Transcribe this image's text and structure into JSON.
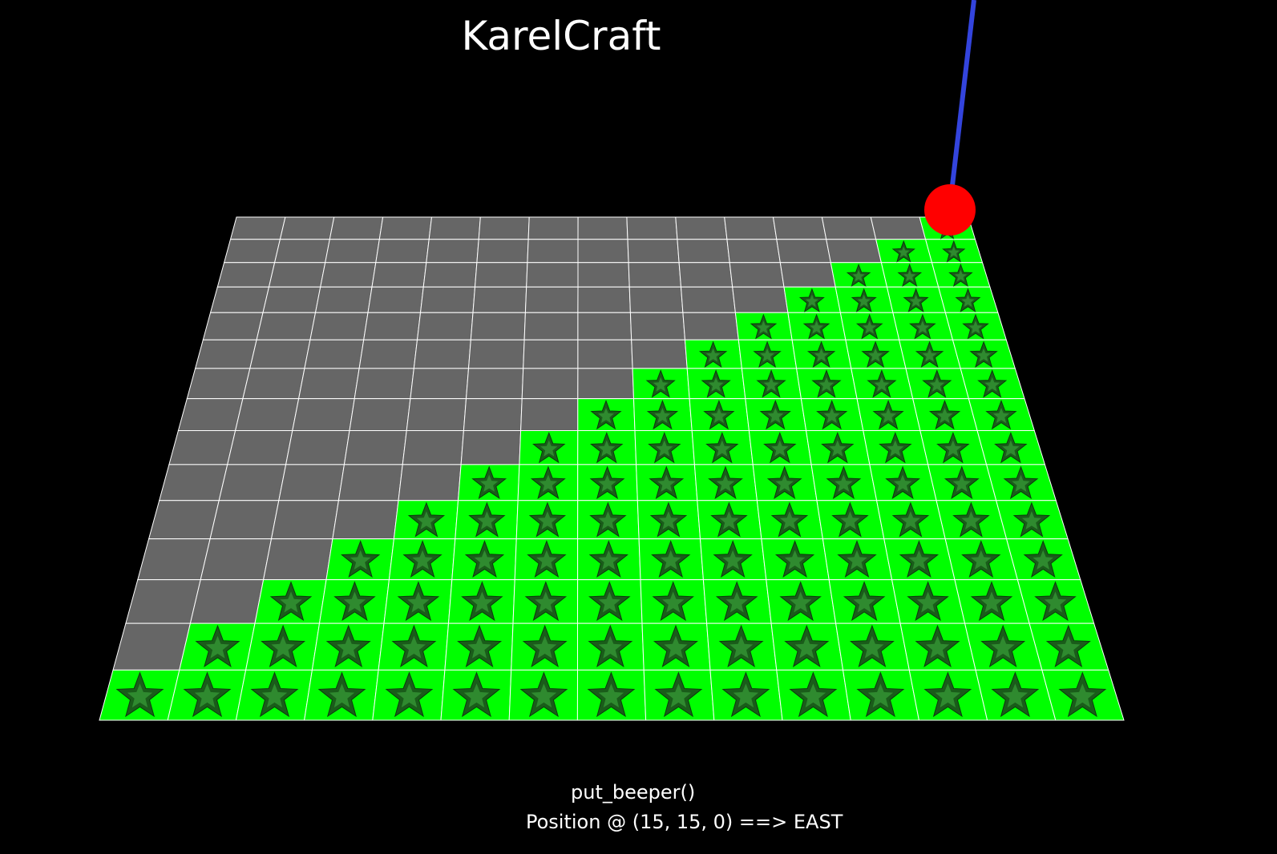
{
  "title": "KarelCraft",
  "status": {
    "last_command": "put_beeper()",
    "position_line": "Position @ (15, 15, 0) ==> EAST"
  },
  "world": {
    "columns": 15,
    "rows": 15,
    "beeper_rule": "cell filled when column_index >= 14 - row_index (rows counted from the far edge)",
    "karel": {
      "x": 15,
      "y": 15,
      "z": 0,
      "direction": "EAST",
      "color": "#ff0000"
    }
  },
  "colors": {
    "background": "#000000",
    "empty_tile": "#666666",
    "beeper_tile": "#00ff00",
    "star": "#1a5c1a",
    "grid_line": "#ffffff",
    "pole": "#3344dd"
  }
}
